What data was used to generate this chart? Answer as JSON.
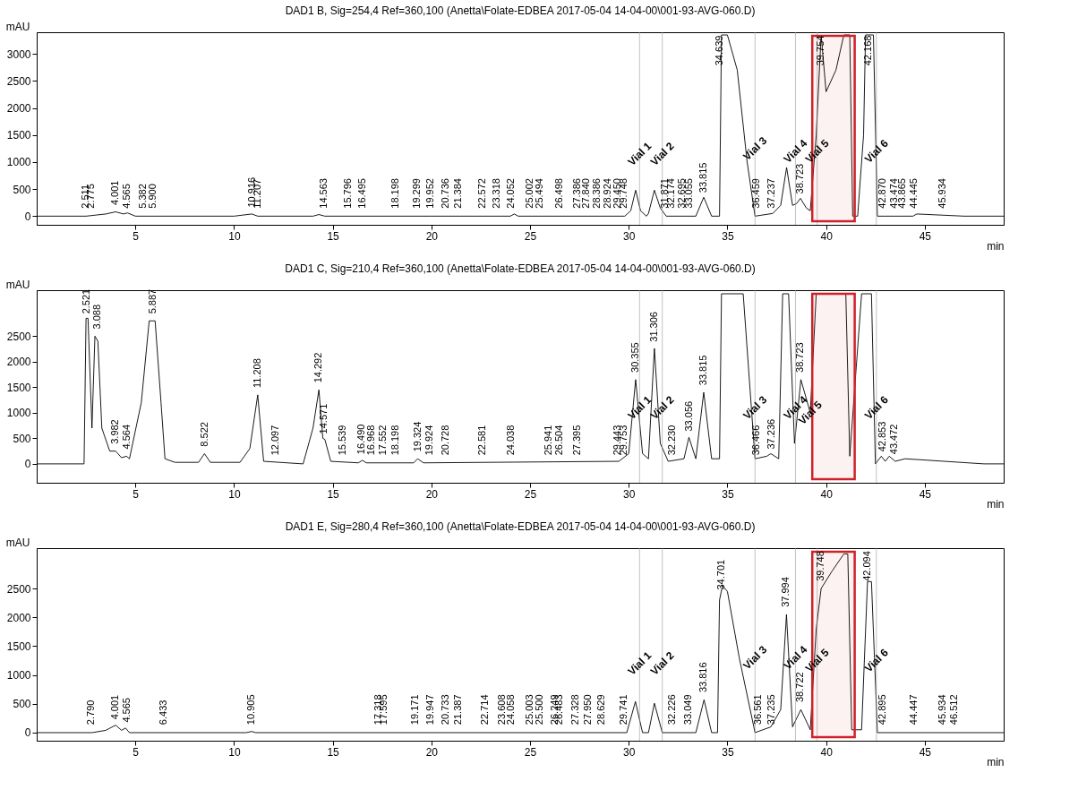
{
  "chart_data": [
    {
      "type": "line",
      "title": "DAD1 B, Sig=254,4 Ref=360,100 (Anetta\\Folate-EDBEA 2017-05-04 14-04-00\\001-93-AVG-060.D)",
      "ylabel": "mAU",
      "xlabel": "min",
      "xlim": [
        0,
        49
      ],
      "ylim": [
        -160,
        3400
      ],
      "xticks": [
        5,
        10,
        15,
        20,
        25,
        30,
        35,
        40,
        45
      ],
      "yticks": [
        0,
        500,
        1000,
        1500,
        2000,
        2500,
        3000
      ],
      "grid": false,
      "x": [
        0,
        2.5,
        3.0,
        3.5,
        4.0,
        4.4,
        4.6,
        5.0,
        10,
        10.9,
        11.2,
        14.0,
        14.3,
        14.6,
        20,
        24,
        24.2,
        24.4,
        29.8,
        30.1,
        30.35,
        30.6,
        30.9,
        31.0,
        31.3,
        31.6,
        31.9,
        33.4,
        33.8,
        34.2,
        34.6,
        34.7,
        34.8,
        35.0,
        35.5,
        36.0,
        36.4,
        37.3,
        37.7,
        38.0,
        38.3,
        38.5,
        38.7,
        39.0,
        39.2,
        39.5,
        39.75,
        40.0,
        40.5,
        40.9,
        41.2,
        41.35,
        41.6,
        41.9,
        42.0,
        42.4,
        42.6,
        43.0,
        44.4,
        44.6,
        47,
        49
      ],
      "series": [
        {
          "color": "#000000",
          "values": [
            0,
            0,
            20,
            40,
            80,
            40,
            60,
            0,
            0,
            40,
            0,
            0,
            30,
            0,
            0,
            0,
            40,
            0,
            0,
            100,
            480,
            100,
            0,
            50,
            480,
            150,
            0,
            0,
            350,
            0,
            0,
            3350,
            3350,
            3350,
            2700,
            1000,
            0,
            50,
            200,
            900,
            200,
            230,
            330,
            150,
            100,
            1500,
            3350,
            2300,
            2700,
            3350,
            3350,
            0,
            0,
            1500,
            3350,
            3350,
            0,
            0,
            0,
            40,
            0,
            0
          ]
        }
      ],
      "ref_lines": [
        {
          "axis": "x",
          "value": 30.55,
          "color": "#999999"
        },
        {
          "axis": "x",
          "value": 31.7,
          "color": "#999999"
        },
        {
          "axis": "x",
          "value": 36.4,
          "color": "#999999"
        },
        {
          "axis": "x",
          "value": 38.45,
          "color": "#999999"
        },
        {
          "axis": "x",
          "value": 39.55,
          "color": "#999999"
        },
        {
          "axis": "x",
          "value": 42.55,
          "color": "#999999"
        }
      ],
      "bands": [
        {
          "axis": "x",
          "from": 39.3,
          "to": 41.45,
          "color": "#d0202a"
        }
      ],
      "annotations": [
        {
          "text": "2.511",
          "x": 2.511,
          "y": 60
        },
        {
          "text": "2.775",
          "x": 2.775,
          "y": 60
        },
        {
          "text": "4.001",
          "x": 4.001,
          "y": 120
        },
        {
          "text": "4.565",
          "x": 4.565,
          "y": 60
        },
        {
          "text": "5.382",
          "x": 5.382,
          "y": 60
        },
        {
          "text": "5.900",
          "x": 5.9,
          "y": 60
        },
        {
          "text": "10.916",
          "x": 10.916,
          "y": 80
        },
        {
          "text": "11.207",
          "x": 11.207,
          "y": 60
        },
        {
          "text": "14.563",
          "x": 14.563,
          "y": 60
        },
        {
          "text": "15.796",
          "x": 15.796,
          "y": 60
        },
        {
          "text": "16.495",
          "x": 16.495,
          "y": 60
        },
        {
          "text": "18.198",
          "x": 18.198,
          "y": 60
        },
        {
          "text": "19.299",
          "x": 19.299,
          "y": 60
        },
        {
          "text": "19.952",
          "x": 19.952,
          "y": 60
        },
        {
          "text": "20.736",
          "x": 20.736,
          "y": 60
        },
        {
          "text": "21.384",
          "x": 21.384,
          "y": 60
        },
        {
          "text": "22.572",
          "x": 22.572,
          "y": 60
        },
        {
          "text": "23.318",
          "x": 23.318,
          "y": 60
        },
        {
          "text": "24.052",
          "x": 24.052,
          "y": 60
        },
        {
          "text": "25.002",
          "x": 25.002,
          "y": 60
        },
        {
          "text": "25.494",
          "x": 25.494,
          "y": 60
        },
        {
          "text": "26.498",
          "x": 26.498,
          "y": 60
        },
        {
          "text": "27.386",
          "x": 27.386,
          "y": 60
        },
        {
          "text": "27.840",
          "x": 27.84,
          "y": 60
        },
        {
          "text": "28.386",
          "x": 28.386,
          "y": 60
        },
        {
          "text": "28.924",
          "x": 28.924,
          "y": 60
        },
        {
          "text": "29.450",
          "x": 29.45,
          "y": 60
        },
        {
          "text": "29.748",
          "x": 29.748,
          "y": 60
        },
        {
          "text": "31.871",
          "x": 31.871,
          "y": 60
        },
        {
          "text": "32.174",
          "x": 32.174,
          "y": 60
        },
        {
          "text": "32.695",
          "x": 32.695,
          "y": 60
        },
        {
          "text": "33.055",
          "x": 33.055,
          "y": 60
        },
        {
          "text": "33.815",
          "x": 33.815,
          "y": 350
        },
        {
          "text": "34.639",
          "x": 34.639,
          "y": 2700
        },
        {
          "text": "36.459",
          "x": 36.459,
          "y": 60
        },
        {
          "text": "37.237",
          "x": 37.237,
          "y": 60
        },
        {
          "text": "38.723",
          "x": 38.723,
          "y": 330
        },
        {
          "text": "39.754",
          "x": 39.754,
          "y": 2700
        },
        {
          "text": "42.168",
          "x": 42.168,
          "y": 2700
        },
        {
          "text": "42.870",
          "x": 42.87,
          "y": 60
        },
        {
          "text": "43.474",
          "x": 43.474,
          "y": 60
        },
        {
          "text": "43.865",
          "x": 43.865,
          "y": 60
        },
        {
          "text": "44.445",
          "x": 44.445,
          "y": 60
        },
        {
          "text": "45.934",
          "x": 45.934,
          "y": 60
        },
        {
          "text": "Vial 1",
          "x": 30.55,
          "y": 1150
        },
        {
          "text": "Vial 2",
          "x": 31.7,
          "y": 1150
        },
        {
          "text": "Vial 3",
          "x": 36.4,
          "y": 1250
        },
        {
          "text": "Vial 4",
          "x": 38.45,
          "y": 1200
        },
        {
          "text": "Vial 5",
          "x": 39.55,
          "y": 1200
        },
        {
          "text": "Vial 6",
          "x": 42.55,
          "y": 1200
        }
      ]
    },
    {
      "type": "line",
      "title": "DAD1 C, Sig=210,4 Ref=360,100 (Anetta\\Folate-EDBEA 2017-05-04 14-04-00\\001-93-AVG-060.D)",
      "ylabel": "mAU",
      "xlabel": "min",
      "xlim": [
        0,
        49
      ],
      "ylim": [
        -370,
        3400
      ],
      "xticks": [
        5,
        10,
        15,
        20,
        25,
        30,
        35,
        40,
        45
      ],
      "yticks": [
        0,
        500,
        1000,
        1500,
        2000,
        2500
      ],
      "grid": false,
      "x": [
        0,
        2.4,
        2.5,
        2.6,
        2.8,
        2.95,
        3.1,
        3.3,
        3.7,
        4.0,
        4.3,
        4.55,
        4.7,
        5.3,
        5.7,
        6.0,
        6.3,
        6.5,
        7.0,
        8.2,
        8.5,
        8.8,
        10.3,
        10.8,
        11.2,
        11.5,
        13.5,
        14.0,
        14.3,
        14.5,
        14.6,
        14.9,
        16.3,
        16.5,
        16.7,
        19.1,
        19.3,
        19.6,
        29.5,
        30.0,
        30.35,
        30.7,
        31.0,
        31.3,
        31.6,
        32.0,
        32.8,
        33.05,
        33.4,
        33.8,
        34.2,
        34.6,
        34.7,
        35.8,
        36.4,
        37.0,
        37.2,
        37.6,
        37.8,
        38.1,
        38.4,
        38.723,
        39.2,
        39.5,
        41.0,
        41.2,
        41.8,
        42.3,
        42.5,
        42.8,
        43.0,
        43.2,
        43.5,
        44.0,
        48,
        49
      ],
      "series": [
        {
          "color": "#000000",
          "values": [
            0,
            0,
            2850,
            2850,
            700,
            2500,
            2400,
            700,
            250,
            250,
            120,
            150,
            100,
            1200,
            2800,
            2800,
            1200,
            100,
            30,
            30,
            200,
            30,
            30,
            300,
            1350,
            50,
            0,
            700,
            1450,
            500,
            480,
            50,
            20,
            70,
            20,
            20,
            100,
            20,
            50,
            200,
            1650,
            200,
            100,
            2260,
            400,
            50,
            100,
            520,
            100,
            1400,
            100,
            100,
            3330,
            3330,
            100,
            150,
            200,
            100,
            3330,
            3330,
            400,
            1650,
            1000,
            3330,
            3330,
            150,
            3330,
            3330,
            0,
            150,
            50,
            150,
            50,
            100,
            0,
            0
          ]
        }
      ],
      "ref_lines": [
        {
          "axis": "x",
          "value": 30.55,
          "color": "#999999"
        },
        {
          "axis": "x",
          "value": 31.7,
          "color": "#999999"
        },
        {
          "axis": "x",
          "value": 36.4,
          "color": "#999999"
        },
        {
          "axis": "x",
          "value": 38.45,
          "color": "#999999"
        },
        {
          "axis": "x",
          "value": 42.55,
          "color": "#999999"
        }
      ],
      "bands": [
        {
          "axis": "x",
          "from": 39.3,
          "to": 41.45,
          "color": "#d0202a"
        }
      ],
      "annotations": [
        {
          "text": "2.521",
          "x": 2.521,
          "y": 2850
        },
        {
          "text": "3.088",
          "x": 3.088,
          "y": 2550
        },
        {
          "text": "3.982",
          "x": 3.982,
          "y": 300
        },
        {
          "text": "4.564",
          "x": 4.564,
          "y": 200
        },
        {
          "text": "5.887",
          "x": 5.887,
          "y": 2850
        },
        {
          "text": "8.522",
          "x": 8.522,
          "y": 250
        },
        {
          "text": "11.208",
          "x": 11.208,
          "y": 1400
        },
        {
          "text": "12.097",
          "x": 12.097,
          "y": 80
        },
        {
          "text": "14.292",
          "x": 14.292,
          "y": 1500
        },
        {
          "text": "14.571",
          "x": 14.571,
          "y": 500
        },
        {
          "text": "15.539",
          "x": 15.539,
          "y": 80
        },
        {
          "text": "16.490",
          "x": 16.49,
          "y": 100
        },
        {
          "text": "16.968",
          "x": 16.968,
          "y": 80
        },
        {
          "text": "17.552",
          "x": 17.552,
          "y": 80
        },
        {
          "text": "18.198",
          "x": 18.198,
          "y": 80
        },
        {
          "text": "19.324",
          "x": 19.324,
          "y": 150
        },
        {
          "text": "19.924",
          "x": 19.924,
          "y": 80
        },
        {
          "text": "20.728",
          "x": 20.728,
          "y": 80
        },
        {
          "text": "22.581",
          "x": 22.581,
          "y": 80
        },
        {
          "text": "24.038",
          "x": 24.038,
          "y": 80
        },
        {
          "text": "25.941",
          "x": 25.941,
          "y": 80
        },
        {
          "text": "26.504",
          "x": 26.504,
          "y": 80
        },
        {
          "text": "27.395",
          "x": 27.395,
          "y": 80
        },
        {
          "text": "29.443",
          "x": 29.443,
          "y": 80
        },
        {
          "text": "29.753",
          "x": 29.753,
          "y": 80
        },
        {
          "text": "30.355",
          "x": 30.355,
          "y": 1700
        },
        {
          "text": "31.306",
          "x": 31.306,
          "y": 2300
        },
        {
          "text": "32.230",
          "x": 32.23,
          "y": 80
        },
        {
          "text": "33.056",
          "x": 33.056,
          "y": 550
        },
        {
          "text": "33.815",
          "x": 33.815,
          "y": 1450
        },
        {
          "text": "36.466",
          "x": 36.466,
          "y": 80
        },
        {
          "text": "37.236",
          "x": 37.236,
          "y": 200
        },
        {
          "text": "38.723",
          "x": 38.723,
          "y": 1700
        },
        {
          "text": "42.853",
          "x": 42.853,
          "y": 150
        },
        {
          "text": "43.472",
          "x": 43.472,
          "y": 100
        },
        {
          "text": "Vial 1",
          "x": 30.55,
          "y": 1100
        },
        {
          "text": "Vial 2",
          "x": 31.7,
          "y": 1100
        },
        {
          "text": "Vial 3",
          "x": 36.4,
          "y": 1100
        },
        {
          "text": "Vial 4",
          "x": 38.45,
          "y": 1100
        },
        {
          "text": "Vial 5",
          "x": 39.2,
          "y": 1000
        },
        {
          "text": "Vial 6",
          "x": 42.55,
          "y": 1100
        }
      ]
    },
    {
      "type": "line",
      "title": "DAD1 E, Sig=280,4 Ref=360,100 (Anetta\\Folate-EDBEA 2017-05-04 14-04-00\\001-93-AVG-060.D)",
      "ylabel": "mAU",
      "xlabel": "min",
      "xlim": [
        0,
        49
      ],
      "ylim": [
        -140,
        3200
      ],
      "xticks": [
        5,
        10,
        15,
        20,
        25,
        30,
        35,
        40,
        45
      ],
      "yticks": [
        0,
        500,
        1000,
        1500,
        2000,
        2500
      ],
      "grid": false,
      "x": [
        0,
        2.8,
        3.5,
        4.0,
        4.3,
        4.5,
        4.7,
        10.6,
        10.9,
        11.1,
        29.9,
        30.34,
        30.7,
        31.0,
        31.3,
        31.7,
        33.4,
        33.816,
        34.2,
        34.5,
        34.6,
        34.75,
        35.0,
        35.6,
        36.4,
        37.2,
        37.7,
        37.994,
        38.3,
        38.722,
        39.2,
        39.5,
        39.75,
        40.3,
        40.9,
        41.1,
        41.3,
        41.8,
        42.1,
        42.3,
        42.6,
        49
      ],
      "series": [
        {
          "color": "#000000",
          "values": [
            0,
            0,
            40,
            130,
            40,
            80,
            0,
            0,
            20,
            0,
            0,
            540,
            0,
            0,
            510,
            0,
            0,
            570,
            0,
            0,
            2300,
            2550,
            2450,
            1300,
            0,
            100,
            400,
            2050,
            100,
            400,
            50,
            1800,
            2500,
            2800,
            3100,
            3100,
            50,
            50,
            2620,
            2620,
            0,
            0
          ]
        }
      ],
      "ref_lines": [
        {
          "axis": "x",
          "value": 30.55,
          "color": "#999999"
        },
        {
          "axis": "x",
          "value": 31.7,
          "color": "#999999"
        },
        {
          "axis": "x",
          "value": 36.4,
          "color": "#999999"
        },
        {
          "axis": "x",
          "value": 38.45,
          "color": "#999999"
        },
        {
          "axis": "x",
          "value": 39.55,
          "color": "#999999"
        },
        {
          "axis": "x",
          "value": 42.55,
          "color": "#999999"
        }
      ],
      "bands": [
        {
          "axis": "x",
          "from": 39.3,
          "to": 41.45,
          "color": "#d0202a"
        }
      ],
      "annotations": [
        {
          "text": "2.790",
          "x": 2.79,
          "y": 60
        },
        {
          "text": "4.001",
          "x": 4.001,
          "y": 150
        },
        {
          "text": "4.565",
          "x": 4.565,
          "y": 100
        },
        {
          "text": "6.433",
          "x": 6.433,
          "y": 60
        },
        {
          "text": "10.905",
          "x": 10.905,
          "y": 60
        },
        {
          "text": "17.318",
          "x": 17.318,
          "y": 60
        },
        {
          "text": "17.595",
          "x": 17.595,
          "y": 60
        },
        {
          "text": "19.171",
          "x": 19.171,
          "y": 60
        },
        {
          "text": "19.947",
          "x": 19.947,
          "y": 60
        },
        {
          "text": "20.733",
          "x": 20.733,
          "y": 60
        },
        {
          "text": "21.387",
          "x": 21.387,
          "y": 60
        },
        {
          "text": "22.714",
          "x": 22.714,
          "y": 60
        },
        {
          "text": "23.608",
          "x": 23.608,
          "y": 60
        },
        {
          "text": "24.058",
          "x": 24.058,
          "y": 60
        },
        {
          "text": "25.003",
          "x": 25.003,
          "y": 60
        },
        {
          "text": "25.500",
          "x": 25.5,
          "y": 60
        },
        {
          "text": "26.249",
          "x": 26.249,
          "y": 60
        },
        {
          "text": "26.483",
          "x": 26.483,
          "y": 60
        },
        {
          "text": "27.328",
          "x": 27.328,
          "y": 60
        },
        {
          "text": "27.950",
          "x": 27.95,
          "y": 60
        },
        {
          "text": "28.629",
          "x": 28.629,
          "y": 60
        },
        {
          "text": "29.741",
          "x": 29.741,
          "y": 60
        },
        {
          "text": "32.226",
          "x": 32.226,
          "y": 60
        },
        {
          "text": "33.049",
          "x": 33.049,
          "y": 60
        },
        {
          "text": "33.816",
          "x": 33.816,
          "y": 620
        },
        {
          "text": "34.701",
          "x": 34.701,
          "y": 2400
        },
        {
          "text": "36.561",
          "x": 36.561,
          "y": 60
        },
        {
          "text": "37.235",
          "x": 37.235,
          "y": 60
        },
        {
          "text": "37.994",
          "x": 37.994,
          "y": 2100
        },
        {
          "text": "38.722",
          "x": 38.722,
          "y": 450
        },
        {
          "text": "39.748",
          "x": 39.748,
          "y": 2550
        },
        {
          "text": "42.094",
          "x": 42.094,
          "y": 2550
        },
        {
          "text": "42.895",
          "x": 42.895,
          "y": 60
        },
        {
          "text": "44.447",
          "x": 44.447,
          "y": 60
        },
        {
          "text": "45.934",
          "x": 45.934,
          "y": 60
        },
        {
          "text": "46.512",
          "x": 46.512,
          "y": 60
        },
        {
          "text": "Vial 1",
          "x": 30.55,
          "y": 1200
        },
        {
          "text": "Vial 2",
          "x": 31.7,
          "y": 1200
        },
        {
          "text": "Vial 3",
          "x": 36.4,
          "y": 1300
        },
        {
          "text": "Vial 4",
          "x": 38.45,
          "y": 1300
        },
        {
          "text": "Vial 5",
          "x": 39.55,
          "y": 1250
        },
        {
          "text": "Vial 6",
          "x": 42.55,
          "y": 1250
        }
      ]
    }
  ]
}
